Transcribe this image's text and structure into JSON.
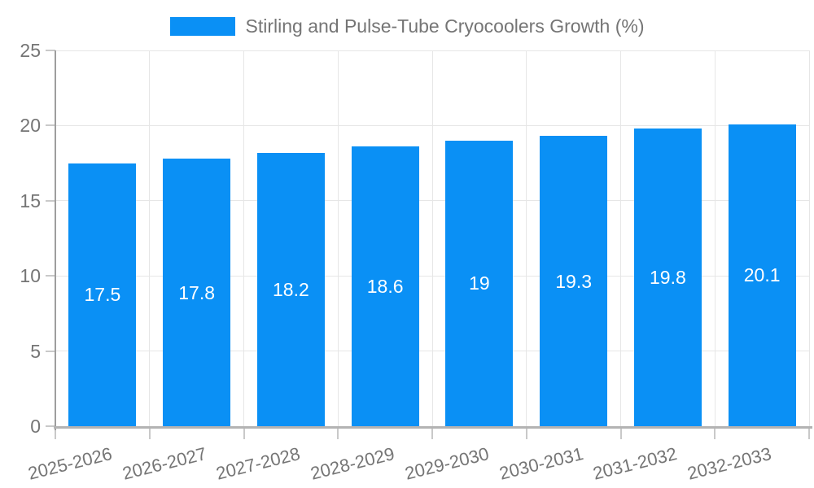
{
  "chart_data": {
    "type": "bar",
    "title": "Stirling and Pulse-Tube Cryocoolers Growth (%)",
    "categories": [
      "2025-2026",
      "2026-2027",
      "2027-2028",
      "2028-2029",
      "2029-2030",
      "2030-2031",
      "2031-2032",
      "2032-2033"
    ],
    "values": [
      17.5,
      17.8,
      18.2,
      18.6,
      19,
      19.3,
      19.8,
      20.1
    ],
    "value_labels": [
      "17.5",
      "17.8",
      "18.2",
      "18.6",
      "19",
      "19.3",
      "19.8",
      "20.1"
    ],
    "xlabel": "",
    "ylabel": "",
    "ylim": [
      0,
      25
    ],
    "yticks": [
      0,
      5,
      10,
      15,
      20,
      25
    ],
    "grid": true,
    "legend_position": "top-center",
    "x_label_rotation_deg": -14,
    "colors": {
      "bar": "#0A90F5",
      "bar_label": "#ffffff",
      "axis_text": "#757575",
      "grid_line": "#e6e6e6",
      "tick_line": "#c9c9c9",
      "y_axis_line": "#9e9e9e",
      "x_axis_line": "#b3b3b3"
    }
  }
}
